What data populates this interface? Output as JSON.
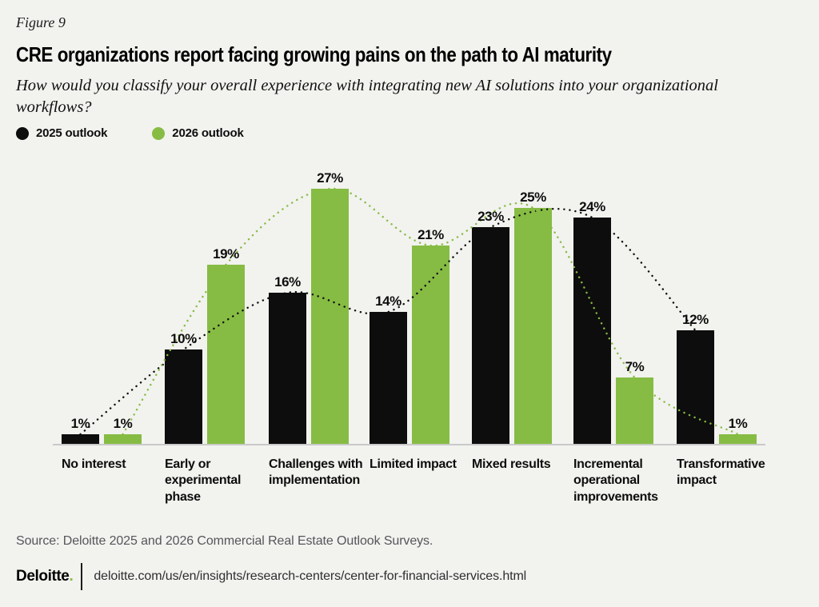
{
  "header": {
    "figure_label": "Figure 9",
    "title": "CRE organizations report facing growing pains on the path to AI maturity",
    "question": "How would you classify your overall experience with integrating new AI solutions into your organizational workflows?"
  },
  "chart_data": {
    "type": "bar",
    "categories": [
      "No interest",
      "Early or experimental phase",
      "Challenges with implementation",
      "Limited impact",
      "Mixed results",
      "Incremental operational improvements",
      "Transformative impact"
    ],
    "category_lines": [
      [
        "No interest"
      ],
      [
        "Early or",
        "experimental",
        "phase"
      ],
      [
        "Challenges with",
        "implementation"
      ],
      [
        "Limited impact"
      ],
      [
        "Mixed results"
      ],
      [
        "Incremental",
        "operational",
        "improvements"
      ],
      [
        "Transformative",
        "impact"
      ]
    ],
    "series": [
      {
        "name": "2025 outlook",
        "color": "#0d0d0d",
        "values": [
          1,
          10,
          16,
          14,
          23,
          24,
          12
        ]
      },
      {
        "name": "2026 outlook",
        "color": "#86bc43",
        "values": [
          1,
          19,
          27,
          21,
          25,
          7,
          1
        ]
      }
    ],
    "value_suffix": "%",
    "data_labels": true,
    "trend_lines": "dotted smooth curve through bar tops, one per series",
    "ylim": [
      0,
      30
    ],
    "grid": false,
    "y_axis_visible": false,
    "legend_position": "top-left"
  },
  "footer": {
    "source": "Source: Deloitte 2025 and 2026 Commercial Real Estate Outlook Surveys.",
    "logo_text": "Deloitte",
    "logo_dot": ".",
    "url": "deloitte.com/us/en/insights/research-centers/center-for-financial-services.html"
  },
  "colors": {
    "background": "#f2f2ef",
    "bar_2025": "#0d0d0d",
    "bar_2026": "#86bc43",
    "axis_line": "#c9c9c9",
    "source_text": "#54565a"
  }
}
